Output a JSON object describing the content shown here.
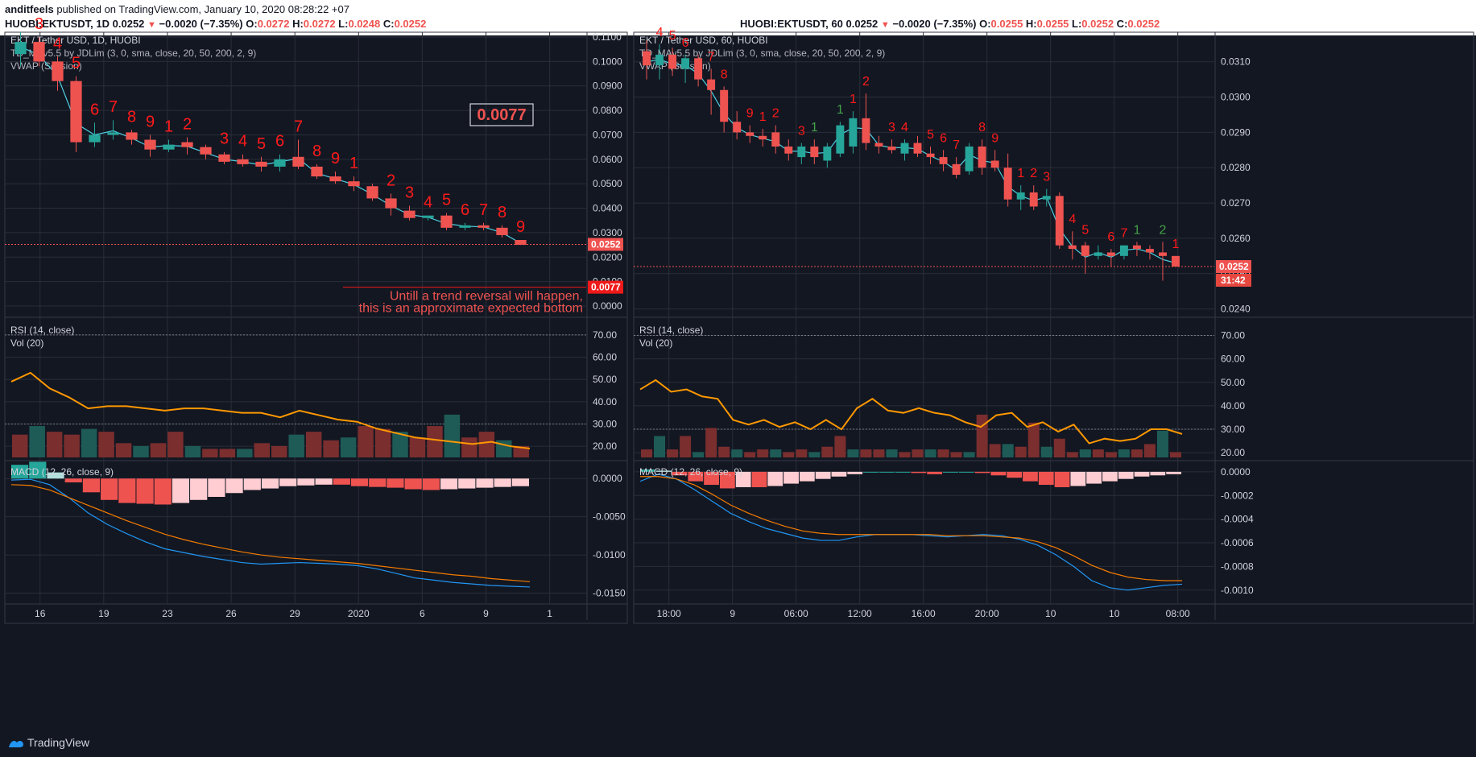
{
  "header": {
    "author": "anditfeels",
    "published": "published on TradingView.com, January 10, 2020 08:28:22 +07",
    "left_symbol": "HUOBI:EKTUSDT, 1D",
    "left_price": "0.0252",
    "left_change": "−0.0020 (−7.35%)",
    "left_ohlc": {
      "O": "0.0272",
      "H": "0.0272",
      "L": "0.0248",
      "C": "0.0252"
    },
    "right_symbol": "HUOBI:EKTUSDT, 60",
    "right_price": "0.0252",
    "right_change": "−0.0020 (−7.35%)",
    "right_ohlc": {
      "O": "0.0255",
      "H": "0.0255",
      "L": "0.0252",
      "C": "0.0252"
    }
  },
  "colors": {
    "bg": "#131722",
    "up": "#26a69a",
    "down": "#ef5350",
    "grid": "#2a2e39",
    "rsi": "#ff9800",
    "macd": "#2196f3",
    "signal": "#f57c00",
    "vwap": "#4dd0e1",
    "td_red": "#ff1a1a",
    "td_green": "#2e7d32"
  },
  "footer": {
    "brand": "TradingView"
  },
  "chart_data": [
    {
      "type": "candlestick",
      "title": "EKT / Tether USD, 1D, HUOBI",
      "indicators": [
        "TD_MAv5.5 by JDLim (3, 0, sma, close, 20, 50, 200, 2, 9)",
        "VWAP (Session)"
      ],
      "ylim": [
        0,
        0.11
      ],
      "yticks": [
        "0.1100",
        "0.1000",
        "0.0900",
        "0.0800",
        "0.0700",
        "0.0600",
        "0.0500",
        "0.0400",
        "0.0300",
        "0.0200",
        "0.0100",
        "0.0000"
      ],
      "xticks": [
        "16",
        "19",
        "23",
        "26",
        "29",
        "2020",
        "6",
        "9",
        "1"
      ],
      "candles": [
        [
          0.103,
          0.112,
          0.098,
          0.108
        ],
        [
          0.108,
          0.11,
          0.098,
          0.1
        ],
        [
          0.1,
          0.102,
          0.088,
          0.092
        ],
        [
          0.092,
          0.094,
          0.063,
          0.067
        ],
        [
          0.067,
          0.075,
          0.065,
          0.07
        ],
        [
          0.07,
          0.076,
          0.068,
          0.071
        ],
        [
          0.071,
          0.072,
          0.066,
          0.068
        ],
        [
          0.068,
          0.07,
          0.061,
          0.064
        ],
        [
          0.064,
          0.068,
          0.063,
          0.066
        ],
        [
          0.067,
          0.069,
          0.062,
          0.065
        ],
        [
          0.065,
          0.066,
          0.06,
          0.062
        ],
        [
          0.062,
          0.063,
          0.058,
          0.059
        ],
        [
          0.06,
          0.062,
          0.057,
          0.058
        ],
        [
          0.059,
          0.061,
          0.055,
          0.057
        ],
        [
          0.057,
          0.062,
          0.055,
          0.06
        ],
        [
          0.061,
          0.068,
          0.056,
          0.057
        ],
        [
          0.057,
          0.058,
          0.052,
          0.053
        ],
        [
          0.053,
          0.055,
          0.05,
          0.051
        ],
        [
          0.051,
          0.053,
          0.047,
          0.049
        ],
        [
          0.049,
          0.05,
          0.043,
          0.044
        ],
        [
          0.044,
          0.046,
          0.037,
          0.04
        ],
        [
          0.039,
          0.041,
          0.035,
          0.036
        ],
        [
          0.036,
          0.037,
          0.035,
          0.037
        ],
        [
          0.037,
          0.038,
          0.031,
          0.032
        ],
        [
          0.032,
          0.034,
          0.031,
          0.033
        ],
        [
          0.033,
          0.034,
          0.031,
          0.032
        ],
        [
          0.032,
          0.033,
          0.028,
          0.029
        ],
        [
          0.027,
          0.027,
          0.025,
          0.025
        ]
      ],
      "last_price_label": "0.0252",
      "target_label": "0.0077",
      "target_box": "0.0077",
      "annotation": [
        "Untill a trend reversal will happen,",
        "this is an approximate expected bottom"
      ],
      "td_counts": [
        "3",
        "4",
        "5",
        "6",
        "7",
        "8",
        "9",
        "1",
        "2",
        "3",
        "4",
        "5",
        "6",
        "7",
        "8",
        "9",
        "1",
        "2",
        "3",
        "4",
        "5",
        "6",
        "7",
        "8",
        "9"
      ],
      "rsi": {
        "label": "RSI (14, close)",
        "ylim": [
          15,
          75
        ],
        "yticks": [
          "70.00",
          "60.00",
          "50.00",
          "40.00",
          "30.00",
          "20.00"
        ],
        "values": [
          49,
          53,
          46,
          42,
          37,
          38,
          38,
          37,
          36,
          37,
          37,
          36,
          35,
          35,
          33,
          36,
          34,
          32,
          31,
          28,
          26,
          24,
          23,
          22,
          21,
          22,
          20,
          19
        ]
      },
      "volume": {
        "label": "Vol (20)",
        "values": [
          8,
          11,
          9,
          8,
          10,
          9,
          5,
          4,
          5,
          9,
          4,
          3,
          3,
          3,
          5,
          4,
          8,
          9,
          6,
          7,
          11,
          10,
          9,
          7,
          11,
          15,
          7,
          9,
          6,
          4
        ]
      },
      "macd": {
        "label": "MACD (12, 26, close, 9)",
        "ylim": [
          -0.016,
          0.0015
        ],
        "yticks": [
          "0.0000",
          "-0.0050",
          "-0.0100",
          "-0.0150"
        ],
        "hist": [
          0.0018,
          0.0022,
          0.0008,
          -0.0005,
          -0.0018,
          -0.0028,
          -0.0032,
          -0.0033,
          -0.0034,
          -0.0032,
          -0.0028,
          -0.0024,
          -0.0019,
          -0.0015,
          -0.0013,
          -0.001,
          -0.0009,
          -0.0008,
          -0.0008,
          -0.001,
          -0.0011,
          -0.0012,
          -0.0014,
          -0.0015,
          -0.0014,
          -0.0013,
          -0.0012,
          -0.0011,
          -0.001
        ],
        "macd": [
          -0.0002,
          -0.0001,
          -0.0008,
          -0.0025,
          -0.0045,
          -0.006,
          -0.0072,
          -0.0083,
          -0.0092,
          -0.0097,
          -0.0102,
          -0.0106,
          -0.011,
          -0.0112,
          -0.0111,
          -0.011,
          -0.0111,
          -0.0112,
          -0.0114,
          -0.0118,
          -0.0124,
          -0.013,
          -0.0133,
          -0.0136,
          -0.0138,
          -0.014,
          -0.0141,
          -0.0142
        ],
        "signal": [
          -0.0008,
          -0.0009,
          -0.0015,
          -0.0025,
          -0.0035,
          -0.0045,
          -0.0055,
          -0.0064,
          -0.0073,
          -0.008,
          -0.0086,
          -0.0091,
          -0.0096,
          -0.01,
          -0.0103,
          -0.0105,
          -0.0107,
          -0.0109,
          -0.0111,
          -0.0114,
          -0.0117,
          -0.012,
          -0.0123,
          -0.0126,
          -0.0128,
          -0.0131,
          -0.0133,
          -0.0135
        ]
      }
    },
    {
      "type": "candlestick",
      "title": "EKT / Tether USD, 60, HUOBI",
      "indicators": [
        "TD_MAv5.5 by JDLim (3, 0, sma, close, 20, 50, 200, 2, 9)",
        "VWAP (Session)"
      ],
      "ylim": [
        0.0239,
        0.0317
      ],
      "yticks": [
        "0.0310",
        "0.0300",
        "0.0290",
        "0.0280",
        "0.0270",
        "0.0260",
        "0.0250",
        "0.0240"
      ],
      "xticks": [
        "18:00",
        "9",
        "06:00",
        "12:00",
        "16:00",
        "20:00",
        "10",
        "10",
        "08:00"
      ],
      "candles": [
        [
          0.0313,
          0.0316,
          0.0305,
          0.0309
        ],
        [
          0.0309,
          0.0315,
          0.0305,
          0.0312
        ],
        [
          0.0312,
          0.0314,
          0.0306,
          0.0308
        ],
        [
          0.0308,
          0.0312,
          0.0304,
          0.0311
        ],
        [
          0.0311,
          0.0312,
          0.0303,
          0.0305
        ],
        [
          0.0305,
          0.0308,
          0.0295,
          0.0302
        ],
        [
          0.0302,
          0.0303,
          0.029,
          0.0293
        ],
        [
          0.0293,
          0.0296,
          0.0288,
          0.029
        ],
        [
          0.029,
          0.0292,
          0.0287,
          0.0289
        ],
        [
          0.0289,
          0.0291,
          0.0286,
          0.0288
        ],
        [
          0.029,
          0.0292,
          0.0284,
          0.0286
        ],
        [
          0.0286,
          0.0288,
          0.0282,
          0.0284
        ],
        [
          0.0283,
          0.0287,
          0.0281,
          0.0286
        ],
        [
          0.0286,
          0.0288,
          0.0281,
          0.0283
        ],
        [
          0.0282,
          0.0287,
          0.028,
          0.0286
        ],
        [
          0.0284,
          0.0293,
          0.0283,
          0.0292
        ],
        [
          0.0286,
          0.0296,
          0.0284,
          0.0294
        ],
        [
          0.0294,
          0.0301,
          0.0285,
          0.0287
        ],
        [
          0.0287,
          0.0289,
          0.0284,
          0.0286
        ],
        [
          0.0286,
          0.0288,
          0.0284,
          0.0285
        ],
        [
          0.0284,
          0.0288,
          0.0282,
          0.0287
        ],
        [
          0.0287,
          0.0289,
          0.0283,
          0.0284
        ],
        [
          0.0284,
          0.0286,
          0.0281,
          0.0283
        ],
        [
          0.0283,
          0.0285,
          0.0279,
          0.0281
        ],
        [
          0.0281,
          0.0283,
          0.0277,
          0.0278
        ],
        [
          0.0279,
          0.0287,
          0.0278,
          0.0286
        ],
        [
          0.0286,
          0.0288,
          0.0278,
          0.028
        ],
        [
          0.0282,
          0.0285,
          0.0279,
          0.028
        ],
        [
          0.028,
          0.0284,
          0.0269,
          0.0271
        ],
        [
          0.0271,
          0.0275,
          0.0268,
          0.0273
        ],
        [
          0.0273,
          0.0275,
          0.0268,
          0.0269
        ],
        [
          0.0271,
          0.0274,
          0.0269,
          0.0272
        ],
        [
          0.0272,
          0.0273,
          0.0257,
          0.0258
        ],
        [
          0.0258,
          0.0262,
          0.0254,
          0.0257
        ],
        [
          0.0258,
          0.0259,
          0.025,
          0.0255
        ],
        [
          0.0255,
          0.0258,
          0.0254,
          0.0256
        ],
        [
          0.0256,
          0.0257,
          0.0252,
          0.0255
        ],
        [
          0.0255,
          0.0258,
          0.0254,
          0.0258
        ],
        [
          0.0258,
          0.0259,
          0.0255,
          0.0257
        ],
        [
          0.0257,
          0.0258,
          0.0254,
          0.0256
        ],
        [
          0.0256,
          0.0259,
          0.0248,
          0.0255
        ],
        [
          0.0255,
          0.0255,
          0.0252,
          0.0252
        ]
      ],
      "last_price_label": "0.0252",
      "countdown_label": "31:42",
      "td_counts": [
        "4",
        "5",
        "6",
        "7",
        "8",
        "9",
        "1",
        "2",
        "3",
        "1",
        "1",
        "1",
        "2",
        "3",
        "4",
        "5",
        "6",
        "7",
        "8",
        "9",
        "1",
        "2",
        "3",
        "4",
        "5",
        "6",
        "7",
        "1",
        "2",
        "1"
      ],
      "rsi": {
        "label": "RSI (14, close)",
        "ylim": [
          18,
          75
        ],
        "yticks": [
          "70.00",
          "60.00",
          "50.00",
          "40.00",
          "30.00",
          "20.00"
        ],
        "values": [
          47,
          51,
          46,
          47,
          44,
          43,
          34,
          32,
          34,
          31,
          33,
          30,
          34,
          30,
          39,
          43,
          38,
          37,
          39,
          37,
          36,
          33,
          31,
          36,
          37,
          31,
          33,
          29,
          32,
          24,
          26,
          25,
          26,
          30,
          30,
          28
        ]
      },
      "volume": {
        "label": "Vol (20)",
        "values": [
          3,
          8,
          3,
          8,
          2,
          11,
          4,
          3,
          2,
          3,
          3,
          2,
          3,
          2,
          4,
          8,
          3,
          3,
          3,
          3,
          2,
          3,
          3,
          3,
          2,
          2,
          16,
          5,
          5,
          4,
          13,
          4,
          7,
          2,
          3,
          3,
          2,
          3,
          3,
          5,
          10,
          2
        ]
      },
      "macd": {
        "label": "MACD (12, 26, close, 9)",
        "ylim": [
          -0.00109,
          4e-05
        ],
        "yticks": [
          "0.0000",
          "-0.0002",
          "-0.0004",
          "-0.0006",
          "-0.0008",
          "-0.0010"
        ],
        "hist": [
          2e-05,
          1e-05,
          -3e-05,
          -8e-05,
          -0.00011,
          -0.00014,
          -0.00013,
          -0.00013,
          -0.00012,
          -0.0001,
          -8e-05,
          -6e-05,
          -4e-05,
          -2e-05,
          0.0,
          0.0,
          0.0,
          -1e-05,
          -2e-05,
          0.0,
          0.0,
          -1e-05,
          -3e-05,
          -5e-05,
          -8e-05,
          -0.00011,
          -0.00013,
          -0.00012,
          -0.0001,
          -8e-05,
          -6e-05,
          -4e-05,
          -3e-05,
          -2e-05
        ],
        "macd": [
          -8e-05,
          -2e-05,
          -6e-05,
          -0.00015,
          -0.00025,
          -0.00035,
          -0.00042,
          -0.00048,
          -0.00052,
          -0.00056,
          -0.00058,
          -0.00058,
          -0.00055,
          -0.00053,
          -0.00053,
          -0.00053,
          -0.00054,
          -0.00055,
          -0.00054,
          -0.00053,
          -0.00054,
          -0.00057,
          -0.00062,
          -0.0007,
          -0.0008,
          -0.00092,
          -0.00098,
          -0.001,
          -0.00098,
          -0.00096,
          -0.00095
        ],
        "signal": [
          -4e-05,
          -4e-05,
          -6e-05,
          -0.00011,
          -0.00019,
          -0.00028,
          -0.00035,
          -0.00041,
          -0.00046,
          -0.0005,
          -0.00052,
          -0.00053,
          -0.00053,
          -0.00053,
          -0.00053,
          -0.00053,
          -0.00053,
          -0.00054,
          -0.00054,
          -0.00054,
          -0.00055,
          -0.00056,
          -0.00059,
          -0.00064,
          -0.00071,
          -0.00079,
          -0.00085,
          -0.00089,
          -0.00091,
          -0.00092,
          -0.00092
        ]
      }
    }
  ]
}
